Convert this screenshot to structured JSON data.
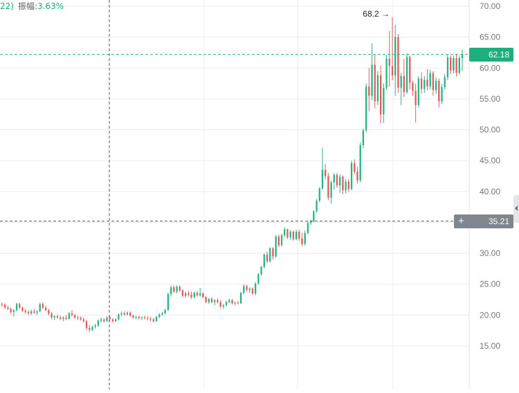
{
  "header": {
    "prefix": "22)",
    "amplitude_label": "振幅:",
    "amplitude_value": "3.63%"
  },
  "chart_data": {
    "type": "candlestick",
    "y_axis": {
      "position": "right",
      "range": [
        13.5,
        71.5
      ],
      "ticks": [
        "15.00",
        "20.00",
        "25.00",
        "30.00",
        "35.00",
        "40.00",
        "45.00",
        "50.00",
        "55.00",
        "60.00",
        "65.00",
        "70.00"
      ]
    },
    "grid": true,
    "candles": [
      [
        21.8,
        22.0,
        21.4,
        21.7
      ],
      [
        21.7,
        21.9,
        21.0,
        21.2
      ],
      [
        21.2,
        21.5,
        20.8,
        21.0
      ],
      [
        21.0,
        21.2,
        20.2,
        20.5
      ],
      [
        20.5,
        21.0,
        19.8,
        20.8
      ],
      [
        20.8,
        22.0,
        20.6,
        21.8
      ],
      [
        21.8,
        22.0,
        21.0,
        21.2
      ],
      [
        21.2,
        21.4,
        20.5,
        20.7
      ],
      [
        20.7,
        21.0,
        20.2,
        20.5
      ],
      [
        20.5,
        20.8,
        20.0,
        20.3
      ],
      [
        20.3,
        20.9,
        20.0,
        20.6
      ],
      [
        20.6,
        21.0,
        20.2,
        20.4
      ],
      [
        20.4,
        20.8,
        20.0,
        20.6
      ],
      [
        20.6,
        22.0,
        20.5,
        21.8
      ],
      [
        21.8,
        22.0,
        21.0,
        21.2
      ],
      [
        21.2,
        21.5,
        20.6,
        20.8
      ],
      [
        20.8,
        21.0,
        20.0,
        20.2
      ],
      [
        20.2,
        20.5,
        19.3,
        19.6
      ],
      [
        19.6,
        20.0,
        19.2,
        19.8
      ],
      [
        19.8,
        20.1,
        19.4,
        19.6
      ],
      [
        19.6,
        19.9,
        19.2,
        19.4
      ],
      [
        19.4,
        19.8,
        19.0,
        19.6
      ],
      [
        19.6,
        20.0,
        19.2,
        19.4
      ],
      [
        19.4,
        20.5,
        19.3,
        20.3
      ],
      [
        20.3,
        20.8,
        19.8,
        20.0
      ],
      [
        20.0,
        20.2,
        19.4,
        19.6
      ],
      [
        19.6,
        19.9,
        19.2,
        19.5
      ],
      [
        19.5,
        19.8,
        19.1,
        19.3
      ],
      [
        19.3,
        19.6,
        18.8,
        19.0
      ],
      [
        19.0,
        19.2,
        17.6,
        17.9
      ],
      [
        17.9,
        18.4,
        17.3,
        17.6
      ],
      [
        17.6,
        18.3,
        17.4,
        18.1
      ],
      [
        18.1,
        18.6,
        17.8,
        18.3
      ],
      [
        18.3,
        19.3,
        18.1,
        19.1
      ],
      [
        19.1,
        19.6,
        18.8,
        19.3
      ],
      [
        19.3,
        19.5,
        18.8,
        19.0
      ],
      [
        19.0,
        19.8,
        18.9,
        19.6
      ],
      [
        19.6,
        19.9,
        19.0,
        19.3
      ],
      [
        19.3,
        19.5,
        18.8,
        19.0
      ],
      [
        19.0,
        19.5,
        18.9,
        19.3
      ],
      [
        19.3,
        20.3,
        19.1,
        20.1
      ],
      [
        20.1,
        20.6,
        19.8,
        20.3
      ],
      [
        20.3,
        20.6,
        19.9,
        20.1
      ],
      [
        20.1,
        20.6,
        19.9,
        20.4
      ],
      [
        20.4,
        20.6,
        19.7,
        19.9
      ],
      [
        19.9,
        20.1,
        19.4,
        19.6
      ],
      [
        19.6,
        19.9,
        19.3,
        19.7
      ],
      [
        19.7,
        19.9,
        19.3,
        19.5
      ],
      [
        19.5,
        19.8,
        19.2,
        19.6
      ],
      [
        19.6,
        19.9,
        19.3,
        19.5
      ],
      [
        19.5,
        19.8,
        19.2,
        19.4
      ],
      [
        19.4,
        19.7,
        19.0,
        19.3
      ],
      [
        19.3,
        19.6,
        18.8,
        19.0
      ],
      [
        19.0,
        19.9,
        18.9,
        19.7
      ],
      [
        19.7,
        20.3,
        19.5,
        20.1
      ],
      [
        20.1,
        20.5,
        19.9,
        20.3
      ],
      [
        20.3,
        21.0,
        20.1,
        20.8
      ],
      [
        20.8,
        23.6,
        20.7,
        23.4
      ],
      [
        23.4,
        24.8,
        23.0,
        24.5
      ],
      [
        24.5,
        24.8,
        23.6,
        23.8
      ],
      [
        23.8,
        24.8,
        23.5,
        24.6
      ],
      [
        24.6,
        24.8,
        23.8,
        24.0
      ],
      [
        24.0,
        24.2,
        22.9,
        23.1
      ],
      [
        23.1,
        23.8,
        22.8,
        23.5
      ],
      [
        23.5,
        23.9,
        23.0,
        23.3
      ],
      [
        23.3,
        23.8,
        22.6,
        22.9
      ],
      [
        22.9,
        23.8,
        22.7,
        23.6
      ],
      [
        23.6,
        23.9,
        23.0,
        23.2
      ],
      [
        23.2,
        24.4,
        23.0,
        23.5
      ],
      [
        23.5,
        23.7,
        22.7,
        22.9
      ],
      [
        22.9,
        23.1,
        21.9,
        22.1
      ],
      [
        22.1,
        22.8,
        21.8,
        22.6
      ],
      [
        22.6,
        22.9,
        21.9,
        22.1
      ],
      [
        22.1,
        22.6,
        21.6,
        22.4
      ],
      [
        22.4,
        22.7,
        21.9,
        22.1
      ],
      [
        22.1,
        22.4,
        21.1,
        21.4
      ],
      [
        21.4,
        21.8,
        21.0,
        21.6
      ],
      [
        21.6,
        22.3,
        21.4,
        22.1
      ],
      [
        22.1,
        22.7,
        21.9,
        22.4
      ],
      [
        22.4,
        22.6,
        21.7,
        21.9
      ],
      [
        21.9,
        22.2,
        21.6,
        22.0
      ],
      [
        22.0,
        22.3,
        21.7,
        21.9
      ],
      [
        21.9,
        23.8,
        21.8,
        23.6
      ],
      [
        23.6,
        25.0,
        23.4,
        24.7
      ],
      [
        24.7,
        24.9,
        23.8,
        24.1
      ],
      [
        24.1,
        24.5,
        23.6,
        24.3
      ],
      [
        24.3,
        24.5,
        23.3,
        23.5
      ],
      [
        23.5,
        25.3,
        23.2,
        25.1
      ],
      [
        25.1,
        26.8,
        24.9,
        26.6
      ],
      [
        26.6,
        28.0,
        26.4,
        27.8
      ],
      [
        27.8,
        30.0,
        27.6,
        29.8
      ],
      [
        29.8,
        30.3,
        28.4,
        28.7
      ],
      [
        28.7,
        31.0,
        28.5,
        30.8
      ],
      [
        30.8,
        31.0,
        29.0,
        29.5
      ],
      [
        29.5,
        33.0,
        29.3,
        32.7
      ],
      [
        32.7,
        33.0,
        31.0,
        31.3
      ],
      [
        31.3,
        33.2,
        31.1,
        32.9
      ],
      [
        32.9,
        34.2,
        32.7,
        33.9
      ],
      [
        33.9,
        34.0,
        32.3,
        32.6
      ],
      [
        32.6,
        33.8,
        32.2,
        33.5
      ],
      [
        33.5,
        33.7,
        32.0,
        32.3
      ],
      [
        32.3,
        33.8,
        32.1,
        33.5
      ],
      [
        33.5,
        33.8,
        32.0,
        32.4
      ],
      [
        32.4,
        33.3,
        31.2,
        31.5
      ],
      [
        31.5,
        33.7,
        31.3,
        33.3
      ],
      [
        33.3,
        35.2,
        33.0,
        34.9
      ],
      [
        34.9,
        35.4,
        34.6,
        35.2
      ],
      [
        35.2,
        37.0,
        35.0,
        36.8
      ],
      [
        36.8,
        38.8,
        36.6,
        38.5
      ],
      [
        38.5,
        40.7,
        38.3,
        40.5
      ],
      [
        40.5,
        47.0,
        40.3,
        43.5
      ],
      [
        43.5,
        44.5,
        42.0,
        42.5
      ],
      [
        42.5,
        43.0,
        38.6,
        39.0
      ],
      [
        39.0,
        41.8,
        38.0,
        41.5
      ],
      [
        41.5,
        43.0,
        40.3,
        42.7
      ],
      [
        42.7,
        43.0,
        40.6,
        41.0
      ],
      [
        41.0,
        42.8,
        39.8,
        42.4
      ],
      [
        42.4,
        42.6,
        39.6,
        40.2
      ],
      [
        40.2,
        42.0,
        39.7,
        41.6
      ],
      [
        41.6,
        42.0,
        40.0,
        40.4
      ],
      [
        40.4,
        45.0,
        40.2,
        44.6
      ],
      [
        44.6,
        45.2,
        42.8,
        43.2
      ],
      [
        43.2,
        44.0,
        41.3,
        41.8
      ],
      [
        41.8,
        48.0,
        41.5,
        47.5
      ],
      [
        47.5,
        50.2,
        47.0,
        49.9
      ],
      [
        49.9,
        57.5,
        49.6,
        57.0
      ],
      [
        57.0,
        60.0,
        53.0,
        55.5
      ],
      [
        55.5,
        64.0,
        54.8,
        60.5
      ],
      [
        60.5,
        62.2,
        53.5,
        54.6
      ],
      [
        54.6,
        59.5,
        54.0,
        58.8
      ],
      [
        58.8,
        60.4,
        51.0,
        52.5
      ],
      [
        52.5,
        57.5,
        51.1,
        56.8
      ],
      [
        56.8,
        62.1,
        56.4,
        61.5
      ],
      [
        61.5,
        66.0,
        57.0,
        60.3
      ],
      [
        60.3,
        68.2,
        58.0,
        58.8
      ],
      [
        58.8,
        67.0,
        55.5,
        65.0
      ],
      [
        65.0,
        65.5,
        56.0,
        56.8
      ],
      [
        56.8,
        59.2,
        54.0,
        58.7
      ],
      [
        58.7,
        61.5,
        55.3,
        56.1
      ],
      [
        56.1,
        62.4,
        55.8,
        61.8
      ],
      [
        61.8,
        62.0,
        56.5,
        57.6
      ],
      [
        57.6,
        58.0,
        55.5,
        56.3
      ],
      [
        56.3,
        57.5,
        51.2,
        54.0
      ],
      [
        54.0,
        58.7,
        53.6,
        58.3
      ],
      [
        58.3,
        59.3,
        55.8,
        56.6
      ],
      [
        56.6,
        58.7,
        56.0,
        58.1
      ],
      [
        58.1,
        59.8,
        56.4,
        57.0
      ],
      [
        57.0,
        59.7,
        56.5,
        59.2
      ],
      [
        59.2,
        59.5,
        55.5,
        56.4
      ],
      [
        56.4,
        58.5,
        55.8,
        57.9
      ],
      [
        57.9,
        58.3,
        53.6,
        54.6
      ],
      [
        54.6,
        57.4,
        54.2,
        56.9
      ],
      [
        56.9,
        59.0,
        56.5,
        58.5
      ],
      [
        58.5,
        62.2,
        58.0,
        61.7
      ],
      [
        61.7,
        62.0,
        59.0,
        59.6
      ],
      [
        59.6,
        62.0,
        59.1,
        61.6
      ],
      [
        61.6,
        62.3,
        58.6,
        59.2
      ],
      [
        59.2,
        62.0,
        58.9,
        61.6
      ],
      [
        61.6,
        63.0,
        59.5,
        62.18
      ]
    ],
    "annotations": {
      "high_label": "68.2 →",
      "last_price": "62.18",
      "crosshair_price": "35.21",
      "crosshair_plus": "+"
    },
    "colors": {
      "up": "#26b386",
      "down": "#e05c5c",
      "last_price_tag": "#1db07e",
      "crosshair_tag": "#80868e",
      "grid": "#ececef",
      "crosshair": "#555555"
    }
  }
}
